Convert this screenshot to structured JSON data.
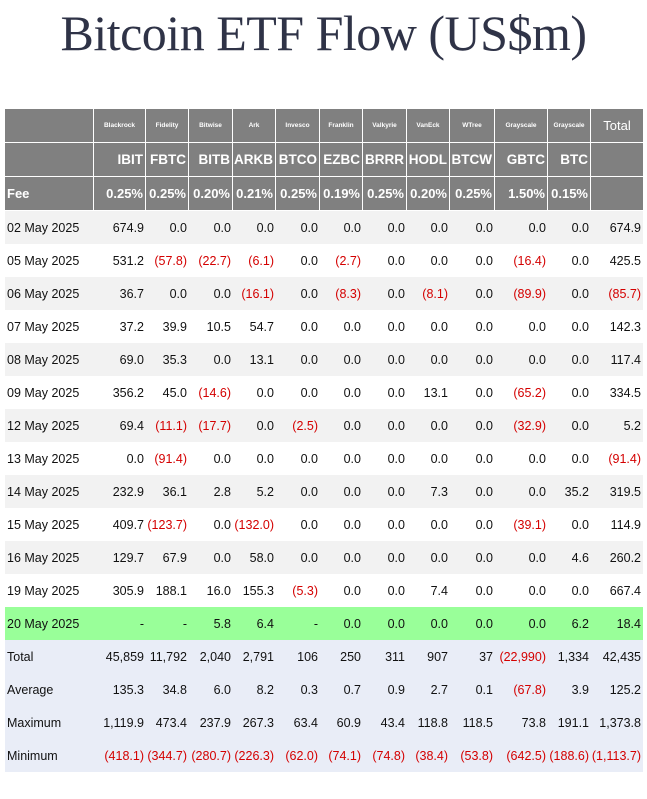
{
  "title": "Bitcoin ETF Flow (US$m)",
  "header": {
    "issuers": [
      "Blackrock",
      "Fidelity",
      "Bitwise",
      "Ark",
      "Invesco",
      "Franklin",
      "Valkyrie",
      "VanEck",
      "WTree",
      "Grayscale",
      "Grayscale"
    ],
    "total_label": "Total",
    "tickers": [
      "IBIT",
      "FBTC",
      "BITB",
      "ARKB",
      "BTCO",
      "EZBC",
      "BRRR",
      "HODL",
      "BTCW",
      "GBTC",
      "BTC"
    ],
    "fee_label": "Fee",
    "fees": [
      "0.25%",
      "0.25%",
      "0.20%",
      "0.21%",
      "0.25%",
      "0.19%",
      "0.25%",
      "0.20%",
      "0.25%",
      "1.50%",
      "0.15%"
    ]
  },
  "rows": [
    {
      "date": "02 May 2025",
      "values": [
        "674.9",
        "0.0",
        "0.0",
        "0.0",
        "0.0",
        "0.0",
        "0.0",
        "0.0",
        "0.0",
        "0.0",
        "0.0",
        "674.9"
      ]
    },
    {
      "date": "05 May 2025",
      "values": [
        "531.2",
        "(57.8)",
        "(22.7)",
        "(6.1)",
        "0.0",
        "(2.7)",
        "0.0",
        "0.0",
        "0.0",
        "(16.4)",
        "0.0",
        "425.5"
      ]
    },
    {
      "date": "06 May 2025",
      "values": [
        "36.7",
        "0.0",
        "0.0",
        "(16.1)",
        "0.0",
        "(8.3)",
        "0.0",
        "(8.1)",
        "0.0",
        "(89.9)",
        "0.0",
        "(85.7)"
      ]
    },
    {
      "date": "07 May 2025",
      "values": [
        "37.2",
        "39.9",
        "10.5",
        "54.7",
        "0.0",
        "0.0",
        "0.0",
        "0.0",
        "0.0",
        "0.0",
        "0.0",
        "142.3"
      ]
    },
    {
      "date": "08 May 2025",
      "values": [
        "69.0",
        "35.3",
        "0.0",
        "13.1",
        "0.0",
        "0.0",
        "0.0",
        "0.0",
        "0.0",
        "0.0",
        "0.0",
        "117.4"
      ]
    },
    {
      "date": "09 May 2025",
      "values": [
        "356.2",
        "45.0",
        "(14.6)",
        "0.0",
        "0.0",
        "0.0",
        "0.0",
        "13.1",
        "0.0",
        "(65.2)",
        "0.0",
        "334.5"
      ]
    },
    {
      "date": "12 May 2025",
      "values": [
        "69.4",
        "(11.1)",
        "(17.7)",
        "0.0",
        "(2.5)",
        "0.0",
        "0.0",
        "0.0",
        "0.0",
        "(32.9)",
        "0.0",
        "5.2"
      ]
    },
    {
      "date": "13 May 2025",
      "values": [
        "0.0",
        "(91.4)",
        "0.0",
        "0.0",
        "0.0",
        "0.0",
        "0.0",
        "0.0",
        "0.0",
        "0.0",
        "0.0",
        "(91.4)"
      ]
    },
    {
      "date": "14 May 2025",
      "values": [
        "232.9",
        "36.1",
        "2.8",
        "5.2",
        "0.0",
        "0.0",
        "0.0",
        "7.3",
        "0.0",
        "0.0",
        "35.2",
        "319.5"
      ]
    },
    {
      "date": "15 May 2025",
      "values": [
        "409.7",
        "(123.7)",
        "0.0",
        "(132.0)",
        "0.0",
        "0.0",
        "0.0",
        "0.0",
        "0.0",
        "(39.1)",
        "0.0",
        "114.9"
      ]
    },
    {
      "date": "16 May 2025",
      "values": [
        "129.7",
        "67.9",
        "0.0",
        "58.0",
        "0.0",
        "0.0",
        "0.0",
        "0.0",
        "0.0",
        "0.0",
        "4.6",
        "260.2"
      ]
    },
    {
      "date": "19 May 2025",
      "values": [
        "305.9",
        "188.1",
        "16.0",
        "155.3",
        "(5.3)",
        "0.0",
        "0.0",
        "7.4",
        "0.0",
        "0.0",
        "0.0",
        "667.4"
      ]
    },
    {
      "date": "20 May 2025",
      "values": [
        "-",
        "-",
        "5.8",
        "6.4",
        "-",
        "0.0",
        "0.0",
        "0.0",
        "0.0",
        "0.0",
        "6.2",
        "18.4"
      ]
    }
  ],
  "summary": [
    {
      "label": "Total",
      "values": [
        "45,859",
        "11,792",
        "2,040",
        "2,791",
        "106",
        "250",
        "311",
        "907",
        "37",
        "(22,990)",
        "1,334",
        "42,435"
      ]
    },
    {
      "label": "Average",
      "values": [
        "135.3",
        "34.8",
        "6.0",
        "8.2",
        "0.3",
        "0.7",
        "0.9",
        "2.7",
        "0.1",
        "(67.8)",
        "3.9",
        "125.2"
      ]
    },
    {
      "label": "Maximum",
      "values": [
        "1,119.9",
        "473.4",
        "237.9",
        "267.3",
        "63.4",
        "60.9",
        "43.4",
        "118.8",
        "118.5",
        "73.8",
        "191.1",
        "1,373.8"
      ]
    },
    {
      "label": "Minimum",
      "values": [
        "(418.1)",
        "(344.7)",
        "(280.7)",
        "(226.3)",
        "(62.0)",
        "(74.1)",
        "(74.8)",
        "(38.4)",
        "(53.8)",
        "(642.5)",
        "(188.6)",
        "(1,113.7)"
      ]
    }
  ]
}
